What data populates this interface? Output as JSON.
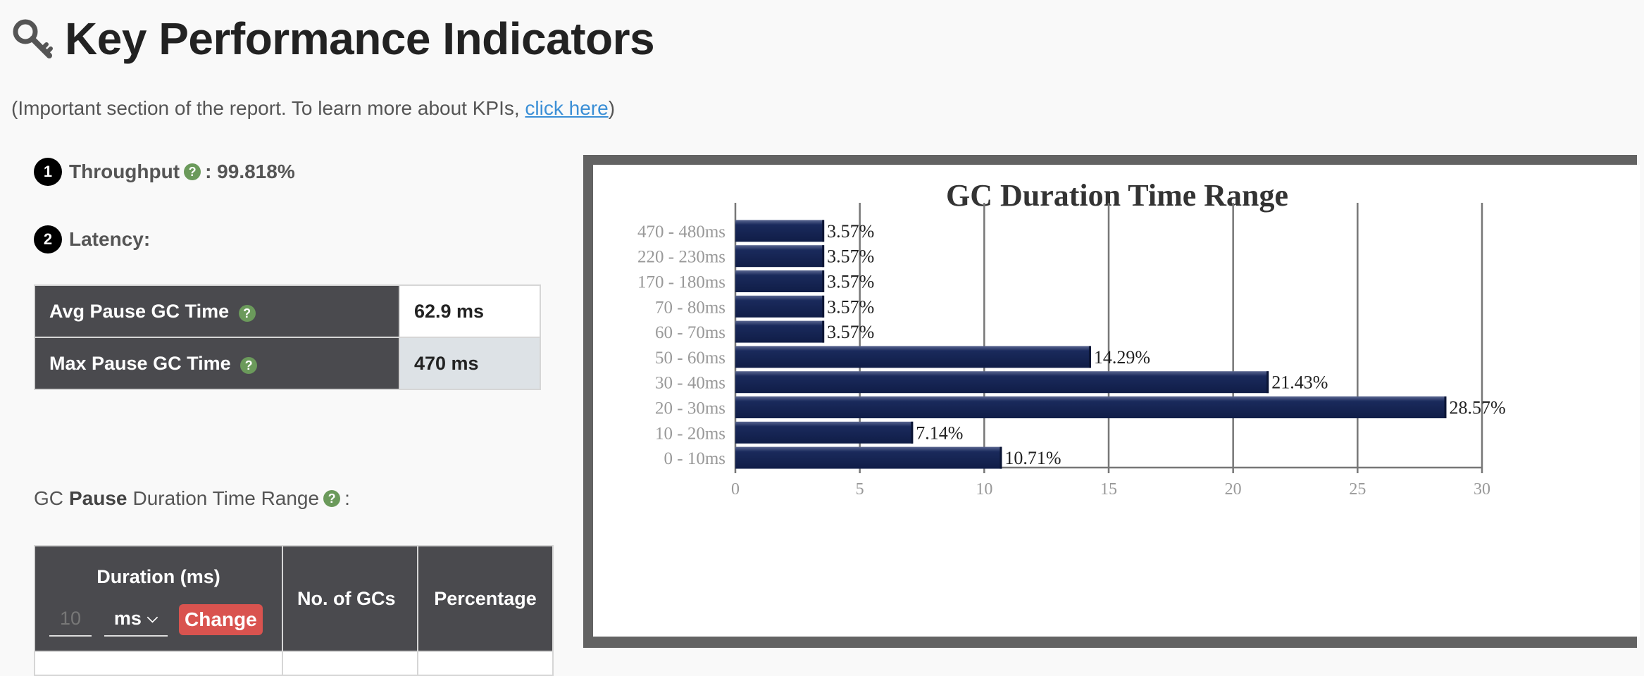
{
  "header": {
    "title": "Key Performance Indicators",
    "icon": "key-icon"
  },
  "subtitle": {
    "prefix": "(Important section of the report. To learn more about KPIs, ",
    "link": "click here",
    "suffix": ")"
  },
  "throughput": {
    "number": "1",
    "label": "Throughput",
    "separator": ":",
    "value": "99.818%"
  },
  "latency": {
    "number": "2",
    "label": "Latency:"
  },
  "pause_table": [
    {
      "label": "Avg Pause GC Time",
      "value": "62.9 ms"
    },
    {
      "label": "Max Pause GC Time",
      "value": "470 ms"
    }
  ],
  "range_section": {
    "prefix": "GC",
    "bold": "Pause",
    "suffix": "Duration Time Range",
    "colon": ":"
  },
  "duration_table": {
    "col_duration": "Duration (ms)",
    "input_placeholder": "10",
    "unit": "ms",
    "change_button": "Change",
    "col_gcs": "No. of GCs",
    "col_pct": "Percentage"
  },
  "colors": {
    "bar": "#14234f",
    "accent_link": "#3b8fd6",
    "change_button": "#d9534f",
    "help_icon": "#6b9a5b",
    "table_header": "#4a4a4e"
  },
  "chart_data": {
    "type": "bar",
    "orientation": "horizontal",
    "title": "GC Duration Time Range",
    "categories": [
      "470 - 480ms",
      "220 - 230ms",
      "170 - 180ms",
      "70 - 80ms",
      "60 - 70ms",
      "50 - 60ms",
      "30 - 40ms",
      "20 - 30ms",
      "10 - 20ms",
      "0 - 10ms"
    ],
    "values": [
      3.57,
      3.57,
      3.57,
      3.57,
      3.57,
      14.29,
      21.43,
      28.57,
      7.14,
      10.71
    ],
    "labels": [
      "3.57%",
      "3.57%",
      "3.57%",
      "3.57%",
      "3.57%",
      "14.29%",
      "21.43%",
      "28.57%",
      "7.14%",
      "10.71%"
    ],
    "xlim": [
      0,
      30
    ],
    "xticks": [
      "0",
      "5",
      "10",
      "15",
      "20",
      "25",
      "30"
    ],
    "grid": true
  }
}
